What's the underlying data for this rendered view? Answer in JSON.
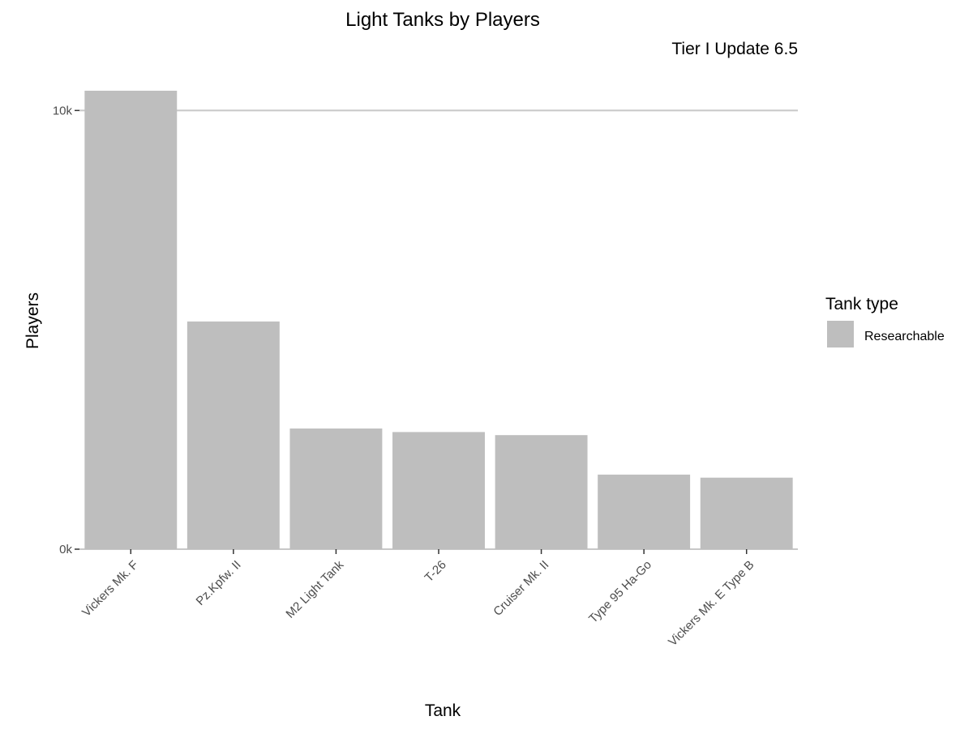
{
  "chart_data": {
    "type": "bar",
    "title": "Light Tanks by Players",
    "subtitle": "Tier I Update 6.5",
    "xlabel": "Tank",
    "ylabel": "Players",
    "categories": [
      "Vickers Mk. F",
      "Pz.Kpfw. II",
      "M2 Light Tank",
      "T-26",
      "Cruiser Mk. II",
      "Type 95 Ha-Go",
      "Vickers Mk. E Type B"
    ],
    "series": [
      {
        "name": "Researchable",
        "values": [
          10450,
          5190,
          2750,
          2670,
          2600,
          1700,
          1630
        ]
      }
    ],
    "ylim": [
      0,
      10450
    ],
    "yticks": [
      0,
      10000
    ],
    "ytick_labels": [
      "0k",
      "10k"
    ],
    "grid": "major y only",
    "legend": {
      "title": "Tank type",
      "position": "right",
      "items": [
        "Researchable"
      ]
    },
    "bar_color": "#bebebe",
    "grid_color": "#c8c8c8"
  }
}
